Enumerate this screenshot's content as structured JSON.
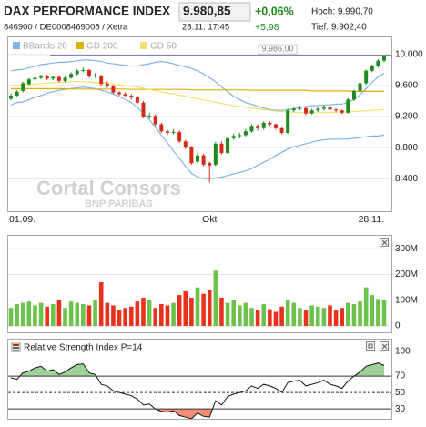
{
  "header": {
    "title": "DAX PERFORMANCE INDEX",
    "price": "9.980,85",
    "change_pct": "+0,06%",
    "hoch": "Hoch: 9.990,70",
    "id_line": "846900 / DE0008469008 / Xetra",
    "time": "28.11. 17:45",
    "change_abs": "+5,98",
    "tief": "Tief: 9.902,40"
  },
  "watermark": {
    "brand": "Cortal Consors",
    "sub": "BNP PARIBAS"
  },
  "chart_data": [
    {
      "type": "candlestick",
      "categories": [
        "01.09.",
        null,
        null,
        null,
        null,
        null,
        null,
        null,
        null,
        null,
        null,
        null,
        null,
        null,
        null,
        null,
        null,
        null,
        null,
        null,
        null,
        null,
        null,
        null,
        null,
        null,
        null,
        null,
        null,
        null,
        null,
        null,
        null,
        "Okt",
        null,
        null,
        null,
        null,
        null,
        null,
        null,
        null,
        null,
        null,
        null,
        null,
        null,
        null,
        null,
        null,
        null,
        null,
        null,
        null,
        null,
        null,
        null,
        null,
        null,
        null,
        null,
        null,
        "28.11."
      ],
      "open": [
        9430,
        9470,
        9530,
        9620,
        9680,
        9700,
        9720,
        9690,
        9710,
        9660,
        9700,
        9750,
        9790,
        9800,
        9720,
        9730,
        9620,
        9590,
        9510,
        9490,
        9470,
        9450,
        9380,
        9200,
        9210,
        9100,
        9010,
        8990,
        9000,
        8880,
        8800,
        8620,
        8700,
        8600,
        8580,
        8850,
        8730,
        8920,
        8950,
        8960,
        9010,
        9080,
        9050,
        9120,
        9100,
        9050,
        8990,
        9280,
        9300,
        9310,
        9240,
        9280,
        9300,
        9330,
        9290,
        9280,
        9250,
        9420,
        9530,
        9630,
        9790,
        9850,
        9920
      ],
      "high": [
        9500,
        9540,
        9650,
        9700,
        9720,
        9740,
        9740,
        9730,
        9720,
        9720,
        9770,
        9810,
        9830,
        9810,
        9760,
        9740,
        9650,
        9610,
        9530,
        9510,
        9490,
        9470,
        9400,
        9250,
        9230,
        9120,
        9030,
        9040,
        9020,
        8900,
        8820,
        8730,
        8720,
        8620,
        8870,
        8880,
        8940,
        8980,
        8990,
        9040,
        9100,
        9100,
        9140,
        9140,
        9110,
        9070,
        9300,
        9330,
        9340,
        9320,
        9300,
        9320,
        9350,
        9340,
        9310,
        9290,
        9440,
        9550,
        9650,
        9810,
        9870,
        9940,
        9990
      ],
      "low": [
        9410,
        9450,
        9510,
        9600,
        9660,
        9680,
        9670,
        9670,
        9640,
        9640,
        9690,
        9730,
        9770,
        9700,
        9700,
        9600,
        9570,
        9490,
        9470,
        9450,
        9420,
        9360,
        9180,
        9170,
        9080,
        8990,
        8960,
        8970,
        8860,
        8780,
        8580,
        8600,
        8560,
        8350,
        8560,
        8710,
        8720,
        8900,
        8920,
        8940,
        8990,
        9020,
        9030,
        9080,
        9030,
        8970,
        8980,
        9260,
        9280,
        9220,
        9230,
        9260,
        9280,
        9270,
        9260,
        9230,
        9240,
        9400,
        9510,
        9610,
        9770,
        9830,
        9900
      ],
      "close": [
        9470,
        9520,
        9630,
        9680,
        9700,
        9720,
        9690,
        9710,
        9660,
        9700,
        9750,
        9790,
        9800,
        9720,
        9730,
        9620,
        9590,
        9510,
        9490,
        9470,
        9450,
        9380,
        9200,
        9210,
        9100,
        9010,
        8990,
        9000,
        8880,
        8800,
        8600,
        8700,
        8580,
        8570,
        8850,
        8730,
        8920,
        8950,
        8960,
        9010,
        9080,
        9050,
        9120,
        9100,
        9050,
        8990,
        9280,
        9300,
        9310,
        9240,
        9280,
        9300,
        9330,
        9290,
        9280,
        9250,
        9420,
        9530,
        9630,
        9790,
        9850,
        9920,
        9980
      ],
      "up_color": "#1e8a1e",
      "down_color": "#d42a1a",
      "series": [
        {
          "name": "BBands 20",
          "color": "#7fb3e6",
          "upper": [
            9790,
            9800,
            9810,
            9830,
            9850,
            9870,
            9880,
            9890,
            9900,
            9900,
            9910,
            9920,
            9930,
            9930,
            9920,
            9910,
            9890,
            9880,
            9870,
            9860,
            9850,
            9850,
            9870,
            9880,
            9900,
            9910,
            9900,
            9880,
            9860,
            9840,
            9820,
            9790,
            9750,
            9700,
            9650,
            9580,
            9520,
            9460,
            9420,
            9380,
            9360,
            9330,
            9310,
            9290,
            9280,
            9280,
            9290,
            9300,
            9320,
            9330,
            9340,
            9340,
            9350,
            9350,
            9360,
            9360,
            9380,
            9420,
            9480,
            9560,
            9640,
            9710,
            9760
          ],
          "lower": [
            9350,
            9380,
            9390,
            9420,
            9450,
            9470,
            9500,
            9520,
            9540,
            9550,
            9560,
            9570,
            9580,
            9570,
            9560,
            9540,
            9520,
            9490,
            9460,
            9420,
            9380,
            9320,
            9240,
            9160,
            9060,
            8960,
            8860,
            8760,
            8660,
            8560,
            8470,
            8420,
            8400,
            8400,
            8410,
            8420,
            8440,
            8460,
            8480,
            8500,
            8530,
            8570,
            8610,
            8650,
            8700,
            8740,
            8780,
            8810,
            8830,
            8850,
            8870,
            8890,
            8900,
            8910,
            8910,
            8910,
            8910,
            8920,
            8930,
            8940,
            8950,
            8950,
            8960
          ]
        },
        {
          "name": "GD 200",
          "color": "#e0b000",
          "values": [
            9560,
            9560,
            9560,
            9560,
            9560,
            9560,
            9560,
            9560,
            9560,
            9560,
            9555,
            9555,
            9555,
            9555,
            9555,
            9555,
            9555,
            9555,
            9555,
            9555,
            9550,
            9550,
            9550,
            9550,
            9550,
            9550,
            9550,
            9550,
            9550,
            9550,
            9545,
            9545,
            9545,
            9545,
            9545,
            9545,
            9545,
            9545,
            9545,
            9545,
            9540,
            9540,
            9540,
            9540,
            9540,
            9540,
            9540,
            9540,
            9540,
            9540,
            9530,
            9530,
            9530,
            9530,
            9530,
            9530,
            9530,
            9525,
            9525,
            9525,
            9525,
            9525,
            9525
          ]
        },
        {
          "name": "GD 50",
          "color": "#f0e070",
          "values": [
            9600,
            9605,
            9610,
            9615,
            9620,
            9625,
            9630,
            9635,
            9640,
            9645,
            9650,
            9650,
            9650,
            9645,
            9640,
            9635,
            9630,
            9620,
            9610,
            9600,
            9590,
            9580,
            9565,
            9550,
            9535,
            9520,
            9505,
            9490,
            9475,
            9460,
            9445,
            9430,
            9415,
            9400,
            9385,
            9370,
            9355,
            9340,
            9330,
            9320,
            9310,
            9300,
            9290,
            9280,
            9270,
            9265,
            9260,
            9255,
            9250,
            9250,
            9250,
            9250,
            9250,
            9255,
            9255,
            9260,
            9260,
            9265,
            9270,
            9275,
            9280,
            9285,
            9290
          ]
        }
      ],
      "annotation": {
        "label": "9.986,00",
        "value": 9986,
        "color": "#1a1a8a"
      },
      "ylim": [
        7980,
        10210
      ],
      "yticks": [
        {
          "value": 10000,
          "label": "10.000"
        },
        {
          "value": 9600,
          "label": "9.600"
        },
        {
          "value": 9200,
          "label": "9.200"
        },
        {
          "value": 8800,
          "label": "8.800"
        },
        {
          "value": 8400,
          "label": "8.400"
        }
      ],
      "grid": true
    },
    {
      "type": "bar",
      "values": [
        70,
        85,
        90,
        95,
        80,
        90,
        75,
        85,
        100,
        70,
        95,
        90,
        85,
        80,
        100,
        170,
        90,
        80,
        60,
        70,
        75,
        95,
        110,
        100,
        70,
        85,
        80,
        90,
        120,
        135,
        110,
        150,
        125,
        140,
        215,
        110,
        90,
        100,
        80,
        90,
        70,
        60,
        85,
        65,
        55,
        75,
        100,
        90,
        70,
        60,
        80,
        75,
        70,
        80,
        60,
        70,
        90,
        85,
        95,
        150,
        120,
        105,
        100
      ],
      "up_color": "#6cc24a",
      "down_color": "#e8321e",
      "ylim": [
        0,
        340
      ],
      "yticks": [
        {
          "value": 300,
          "label": "300M"
        },
        {
          "value": 200,
          "label": "200M"
        },
        {
          "value": 100,
          "label": "100M"
        },
        0
      ],
      "grid": true
    },
    {
      "type": "line",
      "title": "Relative Strength Index P=14",
      "values": [
        68,
        66,
        74,
        76,
        80,
        82,
        76,
        78,
        72,
        75,
        80,
        84,
        85,
        74,
        72,
        60,
        58,
        52,
        50,
        48,
        46,
        42,
        35,
        36,
        30,
        27,
        26,
        28,
        22,
        20,
        18,
        25,
        21,
        20,
        40,
        35,
        45,
        48,
        50,
        52,
        58,
        55,
        60,
        58,
        55,
        50,
        62,
        64,
        65,
        58,
        60,
        62,
        65,
        60,
        58,
        55,
        64,
        70,
        75,
        82,
        84,
        86,
        83
      ],
      "color": "#111111",
      "overbought": 70,
      "oversold": 30,
      "overbought_color": "#9ed19a",
      "oversold_color": "#f4907a",
      "ylim": [
        18,
        110
      ],
      "yticks": [
        100,
        70,
        50,
        30
      ],
      "grid_style": [
        "none",
        "solid",
        "dashed",
        "solid"
      ]
    }
  ]
}
